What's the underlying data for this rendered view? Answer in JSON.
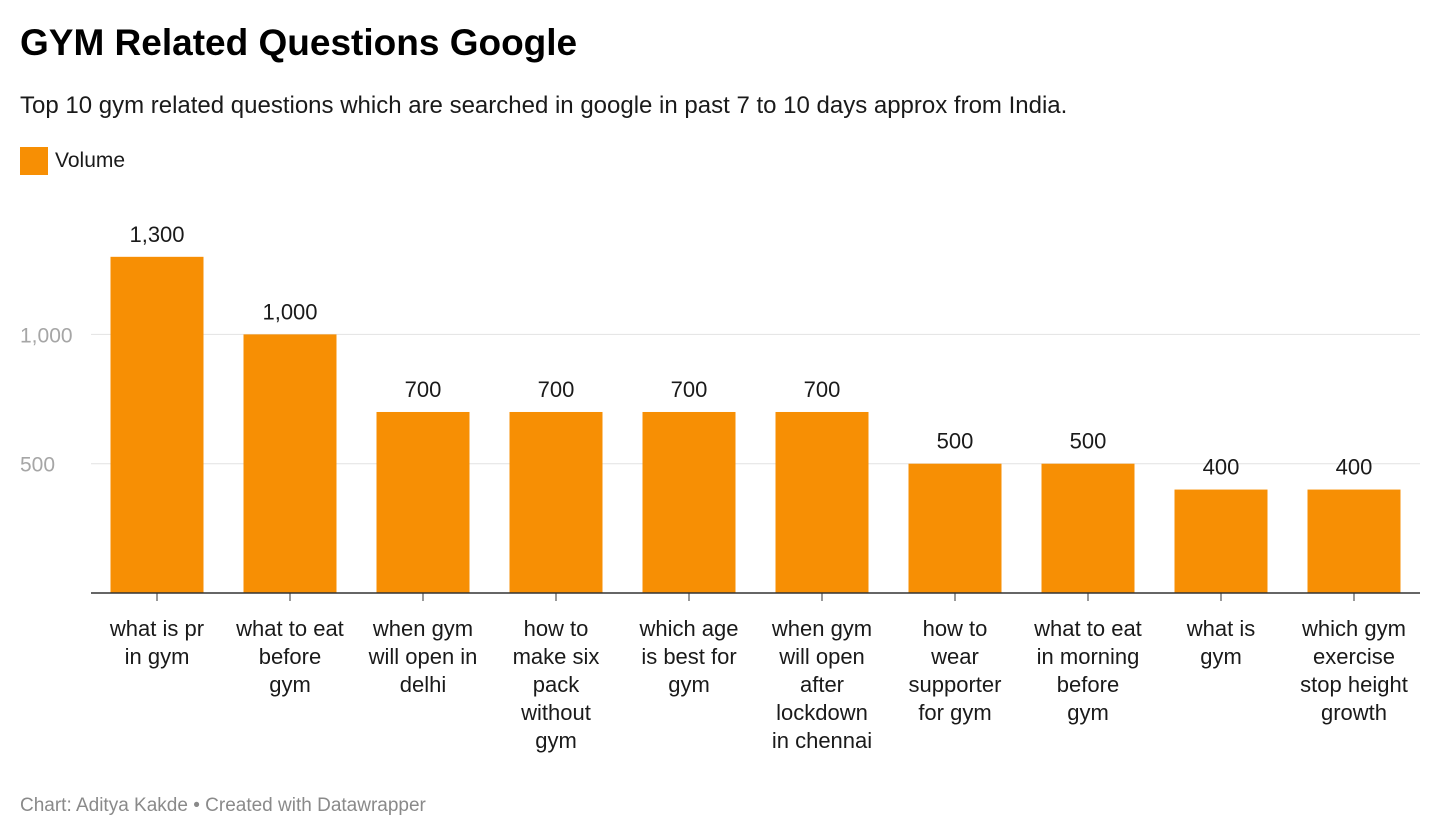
{
  "header": {
    "title": "GYM Related Questions Google",
    "subtitle": "Top 10 gym related questions which are searched in google in past 7 to 10 days approx from India."
  },
  "legend": {
    "label": "Volume",
    "color": "#f78f04"
  },
  "footer": {
    "chart_by": "Chart: Aditya Kakde",
    "separator": "•",
    "created_with": "Created with Datawrapper"
  },
  "chart_data": {
    "type": "bar",
    "title": "GYM Related Questions Google",
    "subtitle": "Top 10 gym related questions which are searched in google in past 7 to 10 days approx from India.",
    "categories": [
      [
        "what is pr",
        "in gym"
      ],
      [
        "what to eat",
        "before",
        "gym"
      ],
      [
        "when gym",
        "will open in",
        "delhi"
      ],
      [
        "how to",
        "make six",
        "pack",
        "without",
        "gym"
      ],
      [
        "which age",
        "is best for",
        "gym"
      ],
      [
        "when gym",
        "will open",
        "after",
        "lockdown",
        "in chennai"
      ],
      [
        "how to",
        "wear",
        "supporter",
        "for gym"
      ],
      [
        "what to eat",
        "in morning",
        "before",
        "gym"
      ],
      [
        "what is",
        "gym"
      ],
      [
        "which gym",
        "exercise",
        "stop height",
        "growth"
      ]
    ],
    "series": [
      {
        "name": "Volume",
        "values": [
          1300,
          1000,
          700,
          700,
          700,
          700,
          500,
          500,
          400,
          400
        ],
        "value_labels": [
          "1,300",
          "1,000",
          "700",
          "700",
          "700",
          "700",
          "500",
          "500",
          "400",
          "400"
        ]
      }
    ],
    "yticks": [
      500,
      1000
    ],
    "ytick_labels": [
      "500",
      "1,000"
    ],
    "ylim": [
      0,
      1300
    ],
    "grid": true,
    "legend_position": "top-left",
    "bar_color": "#f78f04"
  }
}
